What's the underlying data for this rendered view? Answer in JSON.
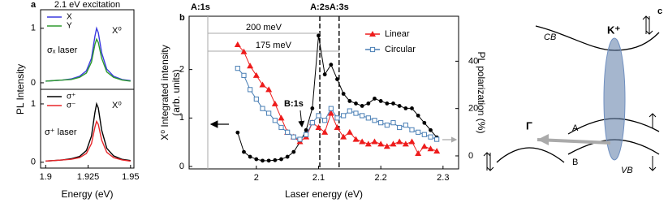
{
  "chart_data": [
    {
      "type": "line",
      "panel_label": "a",
      "title": "2.1 eV excitation",
      "ylabel": "PL Intensity",
      "x": [
        1.9,
        1.905,
        1.91,
        1.915,
        1.92,
        1.924,
        1.927,
        1.929,
        1.93,
        1.931,
        1.933,
        1.936,
        1.94,
        1.945,
        1.95
      ],
      "xlim": [
        1.897,
        1.952
      ],
      "ylim": [
        -0.12,
        1.34
      ],
      "yticks": [
        0,
        1
      ],
      "legend": "upper left",
      "annotations": [
        "X⁰",
        "σₓ laser"
      ],
      "series": [
        {
          "name": "X",
          "color": "#3a3adf",
          "values": [
            0.03,
            0.04,
            0.05,
            0.07,
            0.12,
            0.22,
            0.45,
            0.85,
            1.0,
            0.92,
            0.55,
            0.25,
            0.12,
            0.06,
            0.04
          ]
        },
        {
          "name": "Y",
          "color": "#2e9a2e",
          "values": [
            0.03,
            0.04,
            0.05,
            0.06,
            0.1,
            0.18,
            0.38,
            0.7,
            0.8,
            0.74,
            0.45,
            0.2,
            0.1,
            0.05,
            0.03
          ]
        }
      ]
    },
    {
      "type": "line",
      "xlabel": "Energy (eV)",
      "x": [
        1.9,
        1.905,
        1.91,
        1.915,
        1.92,
        1.924,
        1.927,
        1.929,
        1.93,
        1.931,
        1.933,
        1.936,
        1.94,
        1.945,
        1.95
      ],
      "xlim": [
        1.897,
        1.952
      ],
      "xticks": [
        1.9,
        1.925,
        1.95
      ],
      "ylim": [
        -0.1,
        1.25
      ],
      "yticks": [
        0,
        1
      ],
      "legend": "upper left",
      "annotations": [
        "X⁰",
        "σ⁺ laser"
      ],
      "series": [
        {
          "name": "σ⁺",
          "color": "#000000",
          "values": [
            0.02,
            0.03,
            0.04,
            0.06,
            0.1,
            0.2,
            0.45,
            0.85,
            1.0,
            0.93,
            0.55,
            0.24,
            0.11,
            0.05,
            0.03
          ]
        },
        {
          "name": "σ⁻",
          "color": "#e8262a",
          "values": [
            0.02,
            0.03,
            0.04,
            0.05,
            0.08,
            0.15,
            0.32,
            0.6,
            0.7,
            0.65,
            0.38,
            0.17,
            0.08,
            0.04,
            0.02
          ]
        }
      ]
    },
    {
      "type": "line",
      "panel_label": "b",
      "xlabel": "Laser energy (eV)",
      "ylabel": [
        "X⁰ Integrated intensity",
        "(arb. units)"
      ],
      "y2label": "PL polarization (%)",
      "x": [
        1.97,
        1.98,
        1.99,
        2.0,
        2.01,
        2.02,
        2.03,
        2.04,
        2.05,
        2.06,
        2.07,
        2.08,
        2.09,
        2.1,
        2.11,
        2.12,
        2.13,
        2.14,
        2.15,
        2.16,
        2.17,
        2.18,
        2.19,
        2.2,
        2.21,
        2.22,
        2.23,
        2.24,
        2.25,
        2.26,
        2.27,
        2.28,
        2.29
      ],
      "xlim": [
        1.892,
        2.325
      ],
      "xticks": [
        2.0,
        2.1,
        2.2,
        2.3
      ],
      "ylim": [
        -0.05,
        3.1
      ],
      "yticks": [
        0,
        1,
        2
      ],
      "y2lim": [
        -5.5,
        59
      ],
      "y2ticks": [
        0,
        20,
        40
      ],
      "legend": "upper right",
      "reference_lines": [
        {
          "label": "A:1s",
          "x": 1.922
        },
        {
          "label": "A:2s",
          "x": 2.102
        },
        {
          "label": "A:3s",
          "x": 2.133
        }
      ],
      "energy_gaps": [
        "200 meV",
        "175 meV"
      ],
      "annotations": [
        "B:1s"
      ],
      "series": [
        {
          "color": "#000000",
          "marker": "circle",
          "values": [
            0.7,
            0.3,
            0.2,
            0.15,
            0.12,
            0.12,
            0.13,
            0.15,
            0.2,
            0.3,
            0.5,
            0.75,
            1.2,
            2.7,
            1.9,
            2.1,
            1.8,
            1.5,
            1.35,
            1.3,
            1.25,
            1.3,
            1.4,
            1.35,
            1.3,
            1.3,
            1.25,
            1.2,
            1.2,
            1.05,
            0.9,
            0.75,
            0.6
          ]
        },
        {
          "name": "Linear",
          "color": "#ee1c1c",
          "marker": "triangle",
          "axis": "y2",
          "values": [
            47,
            44,
            38,
            34,
            30,
            28,
            22,
            16,
            10,
            8,
            6,
            8,
            14,
            12,
            10,
            18,
            12,
            8,
            10,
            7,
            6,
            5,
            6,
            5,
            4,
            5,
            6,
            5,
            6,
            1,
            4,
            3,
            2
          ]
        },
        {
          "name": "Circular",
          "color": "#4a7fb5",
          "marker": "square",
          "axis": "y2",
          "values": [
            37,
            34,
            28,
            24,
            20,
            18,
            15,
            12,
            10,
            8,
            7,
            9,
            14,
            17,
            15,
            20,
            16,
            17,
            19,
            18,
            17,
            16,
            15,
            14,
            13,
            14,
            12,
            13,
            11,
            10,
            9,
            8,
            7
          ]
        }
      ]
    }
  ],
  "diagram": {
    "panel_label": "c",
    "labels": [
      "CB",
      "K⁺",
      "Γ",
      "A",
      "B",
      "VB"
    ]
  }
}
